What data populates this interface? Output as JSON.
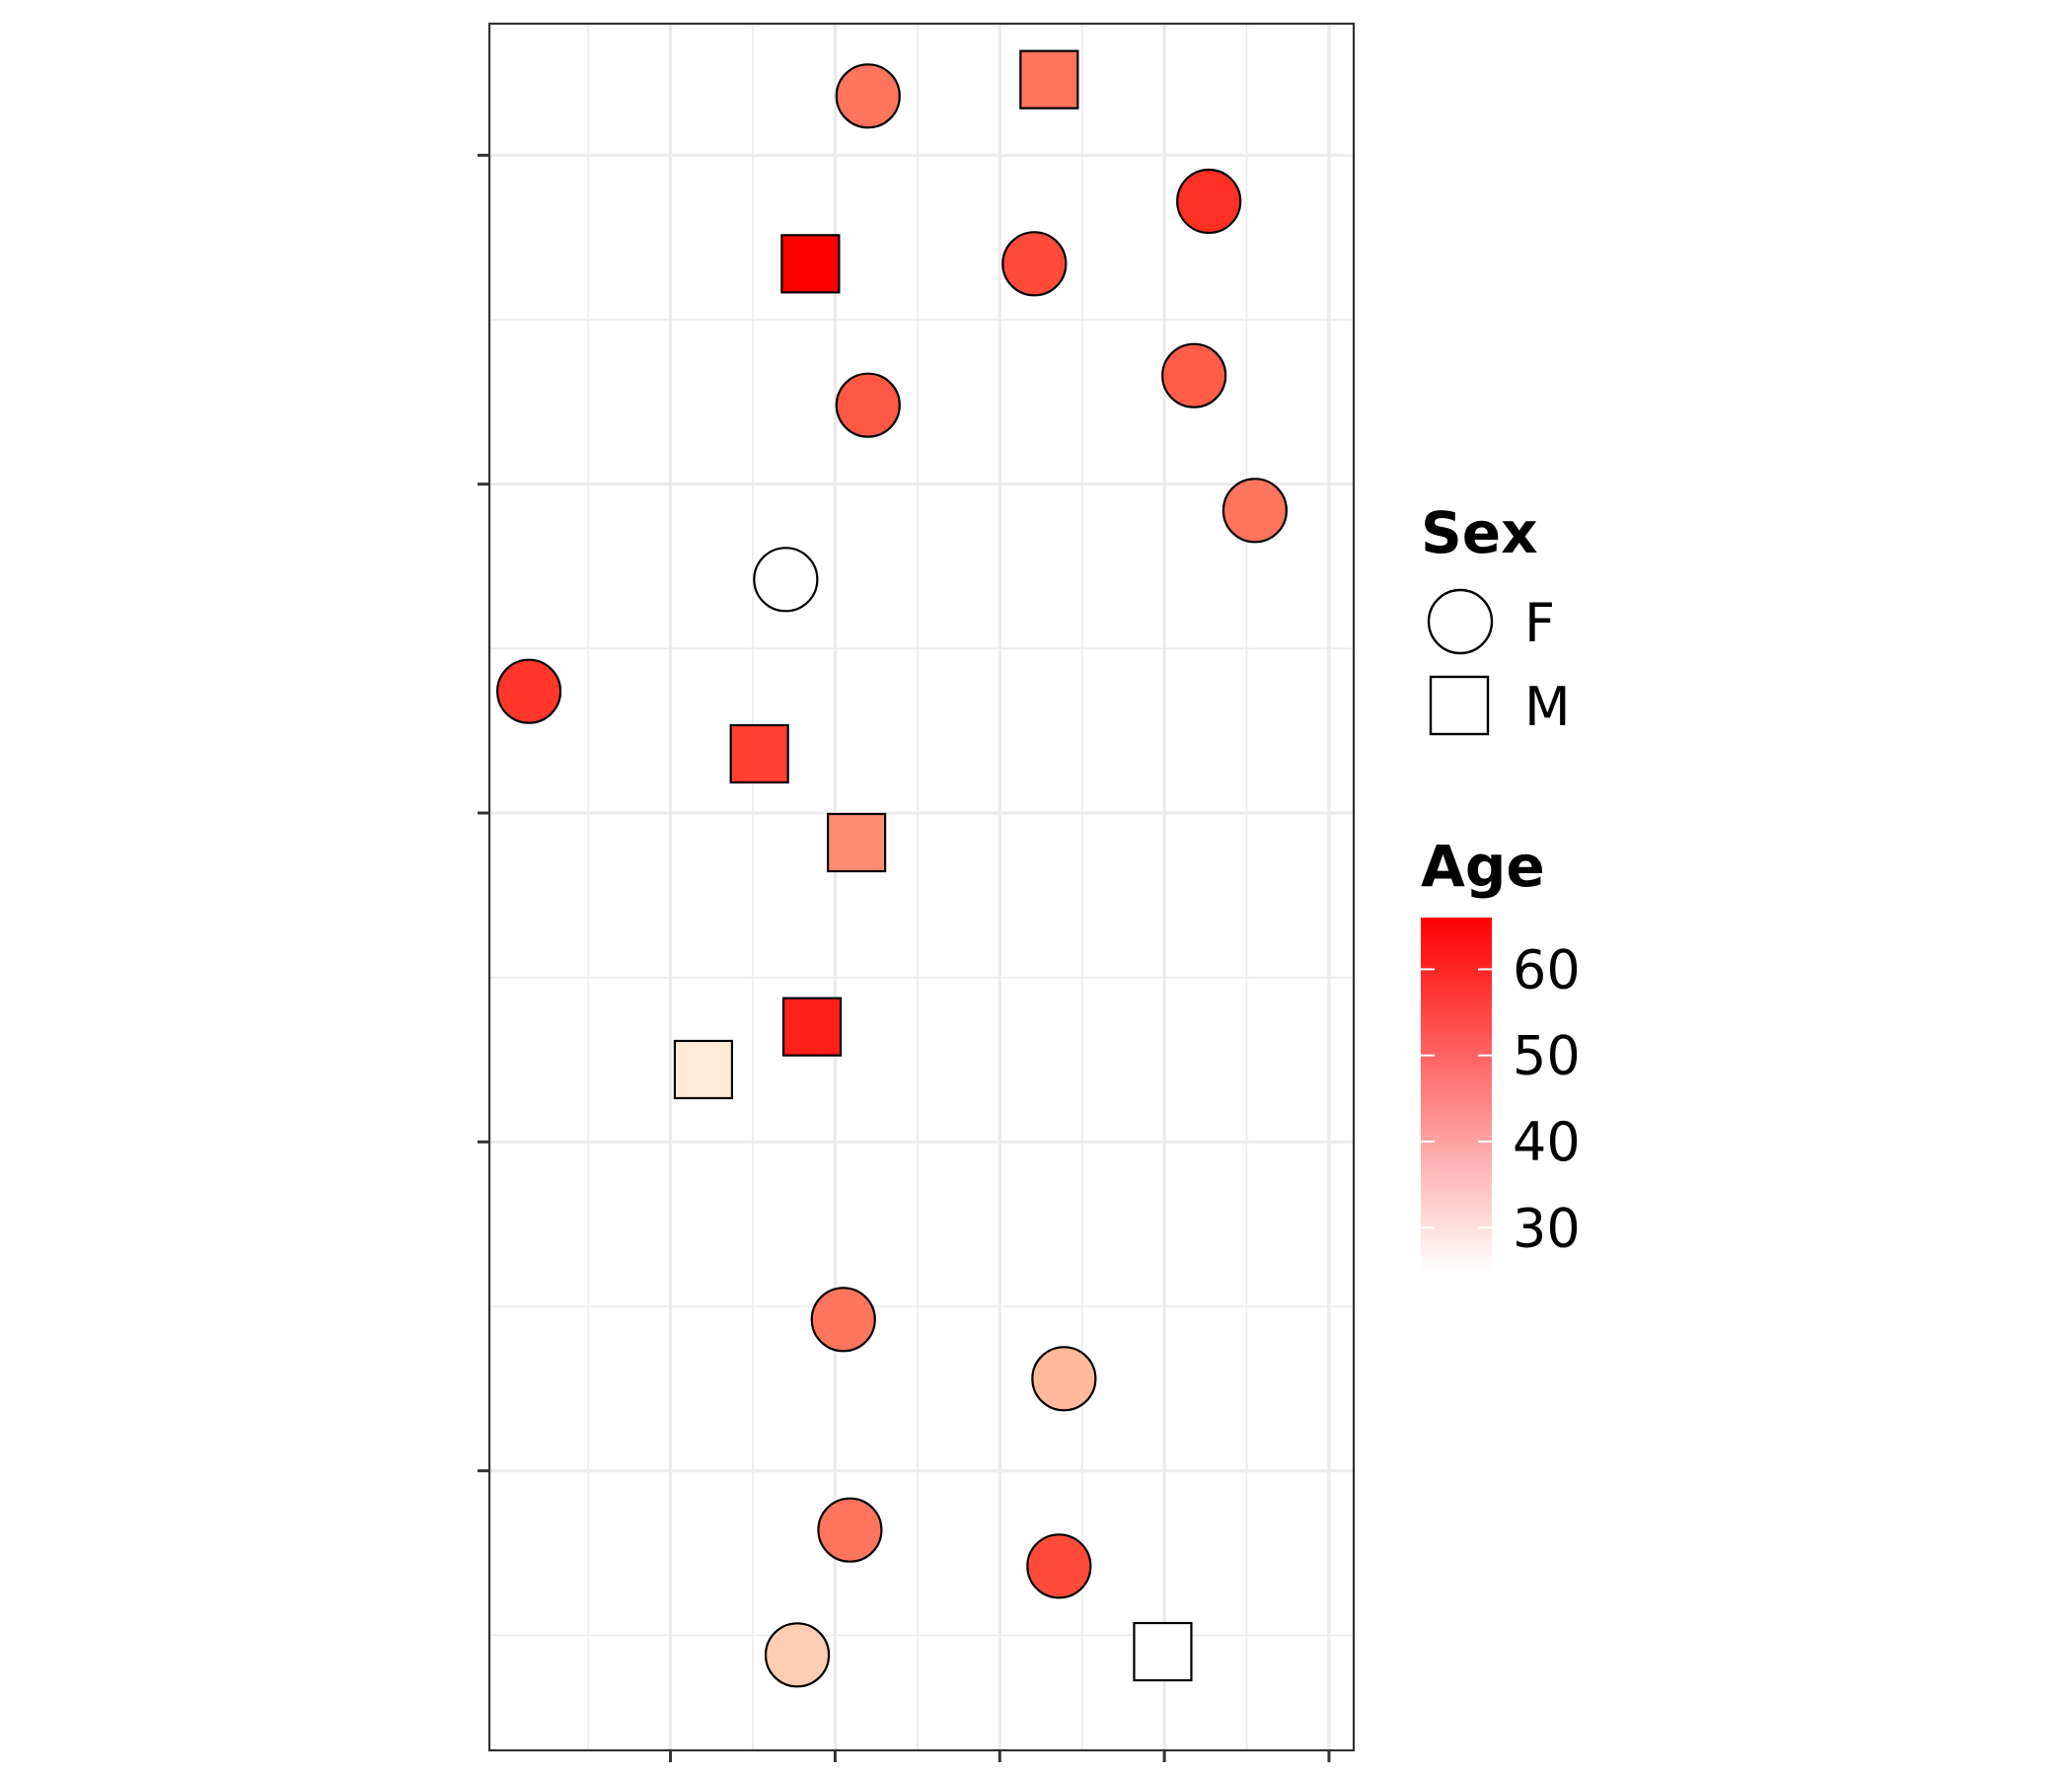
{
  "chart_data": {
    "type": "scatter",
    "title": "",
    "xlabel": "",
    "ylabel": "",
    "x_tick_labels": [],
    "y_tick_labels": [],
    "xlim": [
      -2.6,
      2.65
    ],
    "ylim": [
      -2.85,
      2.4
    ],
    "x_major_breaks": [
      -1.5,
      -0.5,
      0.5,
      1.5,
      2.5
    ],
    "y_major_breaks": [
      -2,
      -1,
      0,
      1,
      2
    ],
    "grid": true,
    "legend_position": "right",
    "shape_legend": {
      "title": "Sex",
      "entries": [
        {
          "label": "F",
          "shape": "circle"
        },
        {
          "label": "M",
          "shape": "square"
        }
      ]
    },
    "color_legend": {
      "title": "Age",
      "breaks": [
        30,
        40,
        50,
        60
      ],
      "limits": [
        25,
        66
      ],
      "low_color": "#ffffff",
      "high_color": "#ff0000"
    },
    "points": [
      {
        "x": -0.3,
        "y": 2.18,
        "sex": "F",
        "age": 45
      },
      {
        "x": 0.8,
        "y": 2.23,
        "sex": "M",
        "age": 45
      },
      {
        "x": 1.77,
        "y": 1.86,
        "sex": "F",
        "age": 57
      },
      {
        "x": -0.65,
        "y": 1.67,
        "sex": "M",
        "age": 66
      },
      {
        "x": 0.71,
        "y": 1.67,
        "sex": "F",
        "age": 52
      },
      {
        "x": 1.68,
        "y": 1.33,
        "sex": "F",
        "age": 49
      },
      {
        "x": -0.3,
        "y": 1.24,
        "sex": "F",
        "age": 50
      },
      {
        "x": 2.05,
        "y": 0.92,
        "sex": "F",
        "age": 45
      },
      {
        "x": -0.8,
        "y": 0.71,
        "sex": "F",
        "age": 25
      },
      {
        "x": -2.36,
        "y": 0.37,
        "sex": "F",
        "age": 56
      },
      {
        "x": -0.96,
        "y": 0.18,
        "sex": "M",
        "age": 54
      },
      {
        "x": -0.37,
        "y": -0.09,
        "sex": "M",
        "age": 41
      },
      {
        "x": -0.64,
        "y": -0.65,
        "sex": "M",
        "age": 60
      },
      {
        "x": -1.3,
        "y": -0.78,
        "sex": "M",
        "age": 27
      },
      {
        "x": -0.45,
        "y": -1.54,
        "sex": "F",
        "age": 45
      },
      {
        "x": 0.89,
        "y": -1.72,
        "sex": "F",
        "age": 34
      },
      {
        "x": -0.41,
        "y": -2.18,
        "sex": "F",
        "age": 45
      },
      {
        "x": 0.86,
        "y": -2.29,
        "sex": "F",
        "age": 52
      },
      {
        "x": -0.73,
        "y": -2.56,
        "sex": "F",
        "age": 31
      },
      {
        "x": 1.49,
        "y": -2.55,
        "sex": "M",
        "age": 25
      }
    ]
  }
}
